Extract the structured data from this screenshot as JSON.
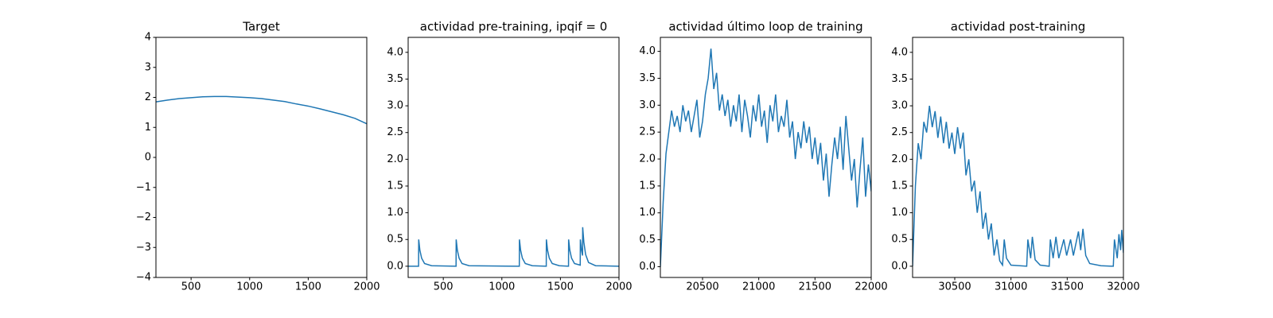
{
  "chart_data": [
    {
      "type": "line",
      "title": "Target",
      "color": "#1f77b4",
      "x": [
        200,
        300,
        400,
        500,
        600,
        700,
        800,
        900,
        1000,
        1100,
        1200,
        1300,
        1400,
        1500,
        1600,
        1700,
        1800,
        1900,
        2000
      ],
      "values": [
        1.85,
        1.91,
        1.96,
        1.99,
        2.02,
        2.03,
        2.03,
        2.01,
        1.99,
        1.96,
        1.91,
        1.86,
        1.78,
        1.71,
        1.62,
        1.52,
        1.42,
        1.3,
        1.12
      ],
      "xlim": [
        200,
        2000
      ],
      "ylim": [
        -4,
        4
      ],
      "xticks": [
        500,
        1000,
        1500,
        2000
      ],
      "yticks": [
        {
          "value": -4,
          "label": "−4"
        },
        {
          "value": -3,
          "label": "−3"
        },
        {
          "value": -2,
          "label": "−2"
        },
        {
          "value": -1,
          "label": "−1"
        },
        0,
        1,
        2,
        3,
        4
      ]
    },
    {
      "type": "line",
      "title": "actividad pre-training, ipqif = 0",
      "color": "#1f77b4",
      "x": [
        200,
        289,
        290,
        300,
        315,
        340,
        400,
        609,
        610,
        620,
        635,
        660,
        720,
        1149,
        1150,
        1160,
        1175,
        1200,
        1260,
        1379,
        1380,
        1390,
        1405,
        1430,
        1490,
        1569,
        1570,
        1580,
        1595,
        1620,
        1669,
        1670,
        1680,
        1689,
        1690,
        1700,
        1715,
        1740,
        1800,
        2000
      ],
      "values": [
        0,
        0,
        0.5,
        0.3,
        0.15,
        0.05,
        0.01,
        0,
        0.5,
        0.3,
        0.15,
        0.05,
        0.01,
        0,
        0.5,
        0.3,
        0.15,
        0.05,
        0.01,
        0,
        0.5,
        0.3,
        0.15,
        0.05,
        0.01,
        0,
        0.5,
        0.3,
        0.15,
        0.05,
        0.02,
        0.5,
        0.3,
        0.2,
        0.73,
        0.45,
        0.22,
        0.07,
        0.01,
        0
      ],
      "xlim": [
        200,
        2000
      ],
      "ylim": [
        -0.21,
        4.28
      ],
      "xticks": [
        500,
        1000,
        1500,
        2000
      ],
      "yticks": [
        {
          "value": 0,
          "label": "0.0"
        },
        0.5,
        {
          "value": 1,
          "label": "1.0"
        },
        1.5,
        {
          "value": 2,
          "label": "2.0"
        },
        2.5,
        {
          "value": 3,
          "label": "3.0"
        },
        3.5,
        {
          "value": 4,
          "label": "4.0"
        }
      ]
    },
    {
      "type": "line",
      "title": "actividad último loop de training",
      "color": "#1f77b4",
      "x": [
        20125,
        20150,
        20175,
        20200,
        20225,
        20250,
        20275,
        20300,
        20325,
        20350,
        20375,
        20400,
        20425,
        20450,
        20475,
        20500,
        20525,
        20550,
        20575,
        20600,
        20625,
        20650,
        20675,
        20700,
        20725,
        20750,
        20775,
        20800,
        20825,
        20850,
        20875,
        20900,
        20925,
        20950,
        20975,
        21000,
        21025,
        21050,
        21075,
        21100,
        21125,
        21150,
        21175,
        21200,
        21225,
        21250,
        21275,
        21300,
        21325,
        21350,
        21375,
        21400,
        21425,
        21450,
        21475,
        21500,
        21525,
        21550,
        21575,
        21600,
        21625,
        21650,
        21675,
        21700,
        21725,
        21750,
        21775,
        21800,
        21825,
        21850,
        21875,
        21900,
        21925,
        21950,
        21975,
        22000
      ],
      "values": [
        0,
        1.2,
        2.1,
        2.5,
        2.9,
        2.6,
        2.8,
        2.5,
        3.0,
        2.7,
        2.9,
        2.5,
        2.8,
        3.1,
        2.4,
        2.7,
        3.2,
        3.5,
        4.05,
        3.3,
        3.6,
        2.9,
        3.2,
        2.8,
        3.1,
        2.6,
        3.0,
        2.7,
        3.2,
        2.5,
        3.1,
        2.8,
        2.4,
        3.0,
        2.7,
        3.2,
        2.6,
        2.9,
        2.3,
        3.0,
        2.7,
        3.2,
        2.5,
        2.8,
        2.6,
        3.1,
        2.4,
        2.7,
        2.0,
        2.5,
        2.2,
        2.7,
        2.3,
        2.6,
        2.0,
        2.4,
        1.9,
        2.3,
        1.6,
        2.1,
        1.3,
        1.9,
        2.4,
        2.0,
        2.6,
        1.8,
        2.8,
        2.2,
        1.6,
        2.0,
        1.1,
        1.8,
        2.4,
        1.3,
        1.9,
        1.4
      ],
      "xlim": [
        20125,
        22000
      ],
      "ylim": [
        -0.2,
        4.26
      ],
      "xticks": [
        20500,
        21000,
        21500,
        22000
      ],
      "yticks": [
        {
          "value": 0,
          "label": "0.0"
        },
        0.5,
        {
          "value": 1,
          "label": "1.0"
        },
        1.5,
        {
          "value": 2,
          "label": "2.0"
        },
        2.5,
        {
          "value": 3,
          "label": "3.0"
        },
        3.5,
        {
          "value": 4,
          "label": "4.0"
        }
      ]
    },
    {
      "type": "line",
      "title": "actividad post-training",
      "color": "#1f77b4",
      "x": [
        30125,
        30150,
        30175,
        30200,
        30225,
        30250,
        30275,
        30300,
        30325,
        30350,
        30375,
        30400,
        30425,
        30450,
        30475,
        30500,
        30525,
        30550,
        30575,
        30600,
        30625,
        30650,
        30675,
        30700,
        30725,
        30750,
        30775,
        30800,
        30825,
        30850,
        30875,
        30900,
        30925,
        30940,
        30960,
        31000,
        31140,
        31150,
        31175,
        31190,
        31215,
        31260,
        31340,
        31350,
        31375,
        31400,
        31425,
        31470,
        31495,
        31530,
        31555,
        31600,
        31620,
        31640,
        31665,
        31700,
        31800,
        31910,
        31920,
        31945,
        31960,
        31975,
        31985,
        32000
      ],
      "values": [
        0,
        1.5,
        2.3,
        2.0,
        2.7,
        2.5,
        3.0,
        2.6,
        2.9,
        2.4,
        2.8,
        2.3,
        2.7,
        2.2,
        2.5,
        2.1,
        2.6,
        2.2,
        2.5,
        1.7,
        2.0,
        1.4,
        1.6,
        1.0,
        1.4,
        0.7,
        1.0,
        0.5,
        0.8,
        0.2,
        0.5,
        0.1,
        0.02,
        0.5,
        0.15,
        0.02,
        0,
        0.5,
        0.15,
        0.55,
        0.12,
        0.02,
        0,
        0.5,
        0.15,
        0.55,
        0.15,
        0.5,
        0.2,
        0.5,
        0.2,
        0.65,
        0.3,
        0.7,
        0.2,
        0.05,
        0.01,
        0,
        0.5,
        0.15,
        0.6,
        0.3,
        0.68,
        0.25
      ],
      "xlim": [
        30125,
        32000
      ],
      "ylim": [
        -0.21,
        4.28
      ],
      "xticks": [
        30500,
        31000,
        31500,
        32000
      ],
      "yticks": [
        {
          "value": 0,
          "label": "0.0"
        },
        0.5,
        {
          "value": 1,
          "label": "1.0"
        },
        1.5,
        {
          "value": 2,
          "label": "2.0"
        },
        2.5,
        {
          "value": 3,
          "label": "3.0"
        },
        3.5,
        {
          "value": 4,
          "label": "4.0"
        }
      ]
    }
  ]
}
